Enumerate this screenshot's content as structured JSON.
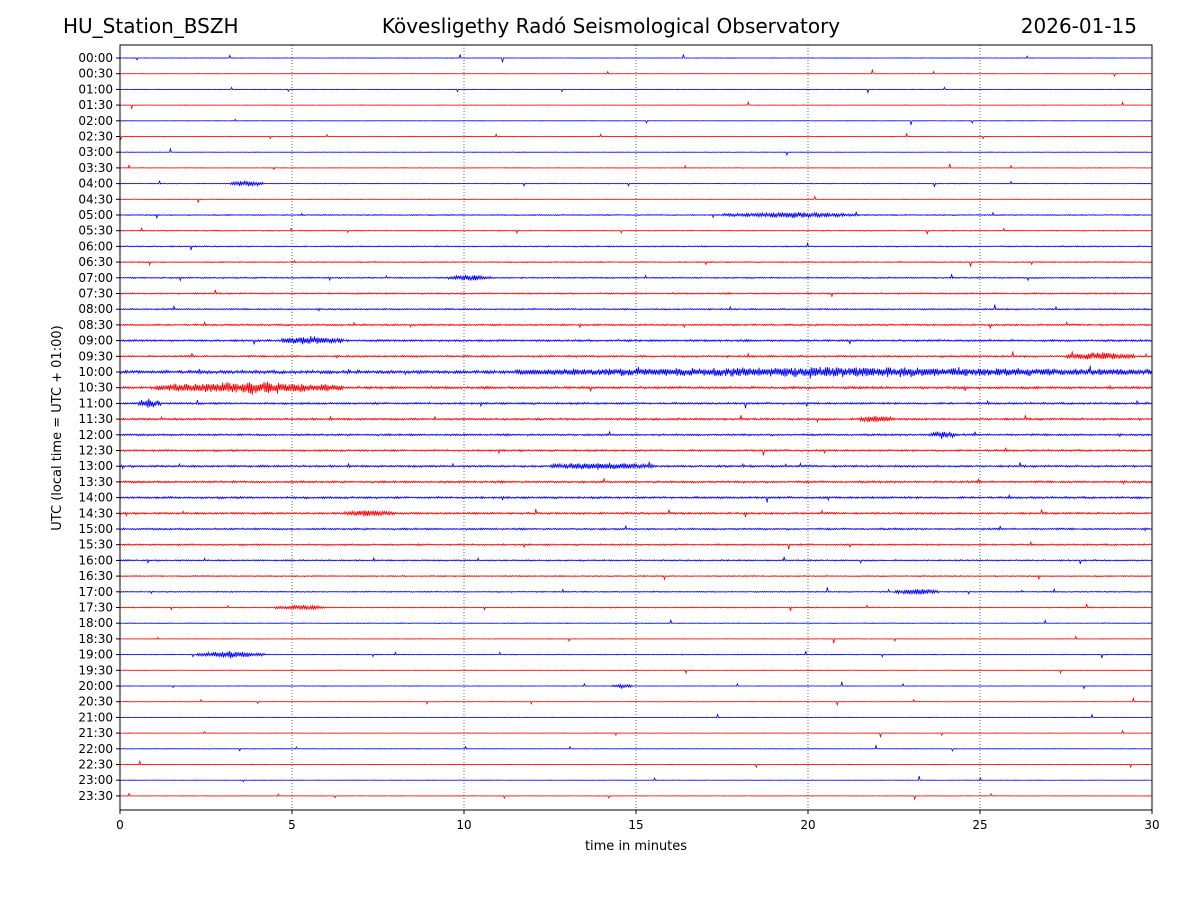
{
  "header": {
    "station": "HU_Station_BSZH",
    "title": "Kövesligethy Radó Seismological Observatory",
    "date": "2026-01-15"
  },
  "chart_data": {
    "type": "line",
    "title": "Kövesligethy Radó Seismological Observatory",
    "xlabel": "time in minutes",
    "ylabel": "UTC (local time = UTC + 01:00)",
    "xlim": [
      0,
      30
    ],
    "x_ticks": [
      0,
      5,
      10,
      15,
      20,
      25,
      30
    ],
    "grid": "vertical dotted lines at 5-minute ticks",
    "colors": {
      "even_rows": "#0000ff",
      "odd_rows": "#ff0000"
    },
    "rows": [
      {
        "label": "00:00",
        "activity": 0.15
      },
      {
        "label": "00:30",
        "activity": 0.15
      },
      {
        "label": "01:00",
        "activity": 0.15
      },
      {
        "label": "01:30",
        "activity": 0.18
      },
      {
        "label": "02:00",
        "activity": 0.15
      },
      {
        "label": "02:30",
        "activity": 0.25
      },
      {
        "label": "03:00",
        "activity": 0.2
      },
      {
        "label": "03:30",
        "activity": 0.22
      },
      {
        "label": "04:00",
        "activity": 0.25
      },
      {
        "label": "04:30",
        "activity": 0.22
      },
      {
        "label": "05:00",
        "activity": 0.45
      },
      {
        "label": "05:30",
        "activity": 0.35
      },
      {
        "label": "06:00",
        "activity": 0.5
      },
      {
        "label": "06:30",
        "activity": 0.45
      },
      {
        "label": "07:00",
        "activity": 0.55
      },
      {
        "label": "07:30",
        "activity": 0.6
      },
      {
        "label": "08:00",
        "activity": 0.6
      },
      {
        "label": "08:30",
        "activity": 0.7
      },
      {
        "label": "09:00",
        "activity": 0.85
      },
      {
        "label": "09:30",
        "activity": 0.75
      },
      {
        "label": "10:00",
        "activity": 1.3
      },
      {
        "label": "10:30",
        "activity": 1.0
      },
      {
        "label": "11:00",
        "activity": 0.8
      },
      {
        "label": "11:30",
        "activity": 0.85
      },
      {
        "label": "12:00",
        "activity": 0.8
      },
      {
        "label": "12:30",
        "activity": 0.75
      },
      {
        "label": "13:00",
        "activity": 0.85
      },
      {
        "label": "13:30",
        "activity": 0.85
      },
      {
        "label": "14:00",
        "activity": 0.85
      },
      {
        "label": "14:30",
        "activity": 0.8
      },
      {
        "label": "15:00",
        "activity": 0.75
      },
      {
        "label": "15:30",
        "activity": 0.65
      },
      {
        "label": "16:00",
        "activity": 0.6
      },
      {
        "label": "16:30",
        "activity": 0.5
      },
      {
        "label": "17:00",
        "activity": 0.45
      },
      {
        "label": "17:30",
        "activity": 0.4
      },
      {
        "label": "18:00",
        "activity": 0.3
      },
      {
        "label": "18:30",
        "activity": 0.22
      },
      {
        "label": "19:00",
        "activity": 0.3
      },
      {
        "label": "19:30",
        "activity": 0.22
      },
      {
        "label": "20:00",
        "activity": 0.2
      },
      {
        "label": "20:30",
        "activity": 0.18
      },
      {
        "label": "21:00",
        "activity": 0.2
      },
      {
        "label": "21:30",
        "activity": 0.18
      },
      {
        "label": "22:00",
        "activity": 0.2
      },
      {
        "label": "22:30",
        "activity": 0.15
      },
      {
        "label": "23:00",
        "activity": 0.15
      },
      {
        "label": "23:30",
        "activity": 0.15
      }
    ],
    "events": [
      {
        "row": "04:00",
        "start_min": 3.2,
        "end_min": 4.2,
        "amp": 3.5
      },
      {
        "row": "05:00",
        "start_min": 17.5,
        "end_min": 21.5,
        "amp": 3.0
      },
      {
        "row": "07:00",
        "start_min": 9.5,
        "end_min": 10.8,
        "amp": 3.0
      },
      {
        "row": "09:00",
        "start_min": 4.7,
        "end_min": 6.5,
        "amp": 4.5
      },
      {
        "row": "09:30",
        "start_min": 27.5,
        "end_min": 29.5,
        "amp": 4.0
      },
      {
        "row": "10:00",
        "start_min": 11.5,
        "end_min": 30.0,
        "amp": 4.5
      },
      {
        "row": "10:30",
        "start_min": 1.0,
        "end_min": 6.5,
        "amp": 6.5
      },
      {
        "row": "11:00",
        "start_min": 0.5,
        "end_min": 1.2,
        "amp": 5.0
      },
      {
        "row": "11:30",
        "start_min": 21.5,
        "end_min": 22.5,
        "amp": 3.5
      },
      {
        "row": "12:00",
        "start_min": 23.5,
        "end_min": 24.3,
        "amp": 4.0
      },
      {
        "row": "13:00",
        "start_min": 12.5,
        "end_min": 15.5,
        "amp": 3.5
      },
      {
        "row": "14:30",
        "start_min": 6.5,
        "end_min": 8.0,
        "amp": 3.0
      },
      {
        "row": "17:00",
        "start_min": 22.5,
        "end_min": 23.8,
        "amp": 3.5
      },
      {
        "row": "17:30",
        "start_min": 4.5,
        "end_min": 6.0,
        "amp": 2.5
      },
      {
        "row": "19:00",
        "start_min": 2.2,
        "end_min": 4.2,
        "amp": 3.5
      },
      {
        "row": "20:00",
        "start_min": 14.3,
        "end_min": 14.9,
        "amp": 2.5
      }
    ]
  }
}
